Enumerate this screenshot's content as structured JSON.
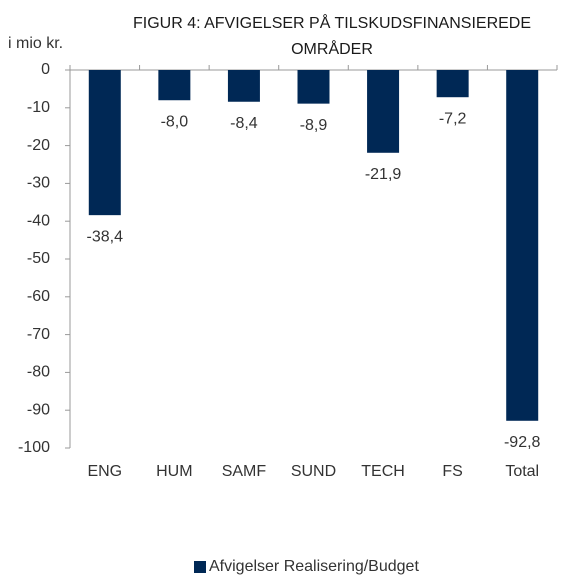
{
  "chart_data": {
    "type": "bar",
    "title": [
      "FIGUR 4: AFVIGELSER PÅ TILSKUDSFINANSIEREDE",
      "OMRÅDER"
    ],
    "y_label": "i mio kr.",
    "categories": [
      "ENG",
      "HUM",
      "SAMF",
      "SUND",
      "TECH",
      "FS",
      "Total"
    ],
    "series": [
      {
        "name": "Afvigelser Realisering/Budget",
        "color": "#002855",
        "values": [
          -38.4,
          -8.0,
          -8.4,
          -8.9,
          -21.9,
          -7.2,
          -92.8
        ],
        "value_labels": [
          "-38,4",
          "-8,0",
          "-8,4",
          "-8,9",
          "-21,9",
          "-7,2",
          "-92,8"
        ]
      }
    ],
    "ylim": [
      -100,
      0
    ],
    "yticks": [
      0,
      -10,
      -20,
      -30,
      -40,
      -50,
      -60,
      -70,
      -80,
      -90,
      -100
    ],
    "legend": "bottom"
  }
}
